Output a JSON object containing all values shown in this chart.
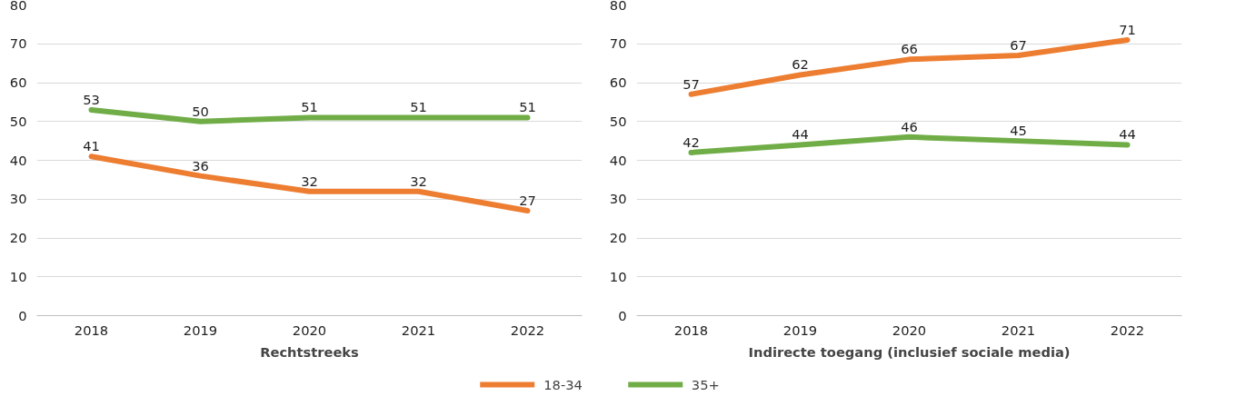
{
  "chart_data": [
    {
      "type": "line",
      "title": "Rechtstreeks",
      "categories": [
        "2018",
        "2019",
        "2020",
        "2021",
        "2022"
      ],
      "ylim": [
        0,
        80
      ],
      "yticks": [
        0,
        10,
        20,
        30,
        40,
        50,
        60,
        70,
        80
      ],
      "grid": "y",
      "data_labels": true,
      "marker": "none",
      "line_style": "solid",
      "legend": "bottom",
      "series": [
        {
          "name": "18-34",
          "color": "#ed7d31",
          "values": [
            41,
            36,
            32,
            32,
            27
          ]
        },
        {
          "name": "35+",
          "color": "#70ad47",
          "values": [
            53,
            50,
            51,
            51,
            51
          ]
        }
      ]
    },
    {
      "type": "line",
      "title": "Indirecte toegang (inclusief sociale media)",
      "categories": [
        "2018",
        "2019",
        "2020",
        "2021",
        "2022"
      ],
      "ylim": [
        0,
        80
      ],
      "yticks": [
        0,
        10,
        20,
        30,
        40,
        50,
        60,
        70,
        80
      ],
      "grid": "y",
      "data_labels": true,
      "marker": "none",
      "line_style": "solid",
      "series": [
        {
          "color": "#ed7d31",
          "values": [
            57,
            62,
            66,
            67,
            71
          ]
        },
        {
          "color": "#70ad47",
          "values": [
            42,
            44,
            46,
            45,
            44
          ]
        }
      ]
    }
  ]
}
